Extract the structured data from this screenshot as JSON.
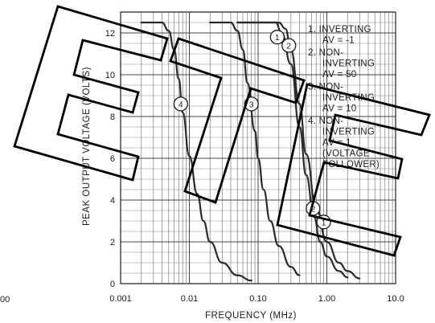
{
  "chart_data": {
    "type": "line",
    "xlabel": "FREQUENCY (MHz)",
    "ylabel": "PEAK OUTPUT VOLTAGE (VOLTS)",
    "x_scale": "log",
    "xlim": [
      0.001,
      10.0
    ],
    "ylim": [
      0,
      13
    ],
    "grid": true,
    "x_ticks": [
      {
        "value": 0.001,
        "label": "0.001"
      },
      {
        "value": 0.01,
        "label": "0.01"
      },
      {
        "value": 0.1,
        "label": "0.10"
      },
      {
        "value": 1.0,
        "label": "1.00"
      },
      {
        "value": 10.0,
        "label": "10.0"
      }
    ],
    "y_ticks": [
      0,
      2,
      4,
      6,
      8,
      10,
      12
    ],
    "legend_placement": "right",
    "legend": [
      {
        "marker": "1",
        "lines": [
          "INVERTING",
          "AV = -1"
        ]
      },
      {
        "marker": "2",
        "lines": [
          "NON-",
          "INVERTING",
          "AV = 50"
        ]
      },
      {
        "marker": "3",
        "lines": [
          "NON-",
          "INVERTING",
          "AV = 10"
        ]
      },
      {
        "marker": "4",
        "lines": [
          "NON-",
          "INVERTING",
          "AV = 1",
          "(VOLTAGE",
          "FOLLOWER)"
        ]
      }
    ],
    "series": [
      {
        "marker": "1",
        "points": [
          [
            0.05,
            12.5
          ],
          [
            0.2,
            12.5
          ],
          [
            0.25,
            12.2
          ],
          [
            0.3,
            11.2
          ],
          [
            0.4,
            8.6
          ],
          [
            0.5,
            6.2
          ],
          [
            0.7,
            3.6
          ],
          [
            1.0,
            2.0
          ],
          [
            1.5,
            1.0
          ],
          [
            2.0,
            0.6
          ],
          [
            3.0,
            0.25
          ]
        ],
        "labels": [
          [
            0.19,
            11.8
          ],
          [
            0.9,
            2.95
          ]
        ]
      },
      {
        "marker": "2",
        "points": [
          [
            0.05,
            12.5
          ],
          [
            0.18,
            12.5
          ],
          [
            0.22,
            12.0
          ],
          [
            0.3,
            10.5
          ],
          [
            0.4,
            7.5
          ],
          [
            0.5,
            5.2
          ],
          [
            0.65,
            3.2
          ],
          [
            0.8,
            2.0
          ],
          [
            1.0,
            1.3
          ],
          [
            1.5,
            0.6
          ],
          [
            2.0,
            0.3
          ]
        ],
        "labels": [
          [
            0.28,
            11.4
          ],
          [
            0.63,
            3.6
          ]
        ]
      },
      {
        "marker": "3",
        "points": [
          [
            0.02,
            12.5
          ],
          [
            0.04,
            12.5
          ],
          [
            0.05,
            12.1
          ],
          [
            0.06,
            11.2
          ],
          [
            0.07,
            9.6
          ],
          [
            0.09,
            7.3
          ],
          [
            0.1,
            6.0
          ],
          [
            0.12,
            4.5
          ],
          [
            0.15,
            3.0
          ],
          [
            0.2,
            1.8
          ],
          [
            0.3,
            0.8
          ],
          [
            0.4,
            0.4
          ]
        ],
        "labels": [
          [
            0.08,
            8.6
          ]
        ]
      },
      {
        "marker": "4",
        "points": [
          [
            0.002,
            12.5
          ],
          [
            0.004,
            12.5
          ],
          [
            0.005,
            12.1
          ],
          [
            0.006,
            11.2
          ],
          [
            0.007,
            9.8
          ],
          [
            0.008,
            8.2
          ],
          [
            0.01,
            6.1
          ],
          [
            0.013,
            4.3
          ],
          [
            0.016,
            3.0
          ],
          [
            0.02,
            2.0
          ],
          [
            0.03,
            1.0
          ],
          [
            0.05,
            0.4
          ],
          [
            0.08,
            0.15
          ]
        ],
        "labels": [
          [
            0.0075,
            8.6
          ]
        ]
      }
    ],
    "overlay_logo": "large outlined letters E T E drawn over the chart",
    "cropped_tick_fragment": "00"
  }
}
